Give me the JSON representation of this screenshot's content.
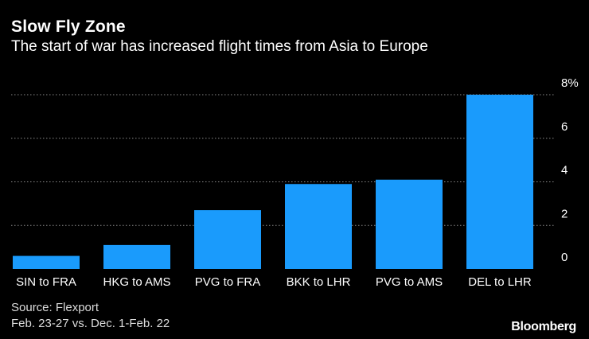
{
  "header": {
    "title": "Slow Fly Zone",
    "subtitle": "The start of war has increased flight times from Asia to Europe"
  },
  "footer": {
    "source": "Source: Flexport",
    "note": "Feb. 23-27 vs. Dec. 1-Feb. 22",
    "brand": "Bloomberg"
  },
  "colors": {
    "bar": "#1a9bfc",
    "background": "#000000",
    "grid": "#8a8a8a"
  },
  "chart_data": {
    "type": "bar",
    "title": "Slow Fly Zone",
    "subtitle": "The start of war has increased flight times from Asia to Europe",
    "categories": [
      "SIN to FRA",
      "HKG to AMS",
      "PVG to FRA",
      "BKK to LHR",
      "PVG to AMS",
      "DEL to LHR"
    ],
    "values": [
      0.6,
      1.1,
      2.7,
      3.9,
      4.1,
      8.0
    ],
    "ylim": [
      0,
      8
    ],
    "yticks": [
      "0",
      "2",
      "4",
      "6",
      "8%"
    ],
    "ytick_values": [
      0,
      2,
      4,
      6,
      8
    ],
    "grid": true,
    "xlabel": "",
    "ylabel": ""
  }
}
